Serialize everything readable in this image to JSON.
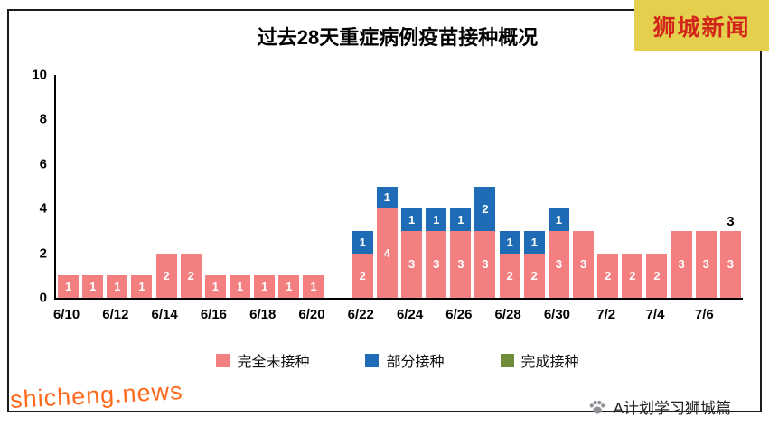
{
  "header": {
    "brand": "狮城新闻",
    "brand_bg": "#e4d04c",
    "brand_color": "#d2251c"
  },
  "chart_data": {
    "type": "bar",
    "stacked": true,
    "title": "过去28天重症病例疫苗接种概况",
    "ylim": [
      0,
      10
    ],
    "yticks": [
      0,
      2,
      4,
      6,
      8,
      10
    ],
    "x_tick_labels": [
      "6/10",
      "6/12",
      "6/14",
      "6/16",
      "6/18",
      "6/20",
      "6/22",
      "6/24",
      "6/26",
      "6/28",
      "6/30",
      "7/2",
      "7/4",
      "7/6"
    ],
    "days": [
      "6/10",
      "6/11",
      "6/12",
      "6/13",
      "6/14",
      "6/15",
      "6/16",
      "6/17",
      "6/18",
      "6/19",
      "6/20",
      "6/21",
      "6/22",
      "6/23",
      "6/24",
      "6/25",
      "6/26",
      "6/27",
      "6/28",
      "6/29",
      "6/30",
      "7/1",
      "7/2",
      "7/3",
      "7/4",
      "7/5",
      "7/6",
      "7/7"
    ],
    "series": [
      {
        "name": "完全未接种",
        "color": "#f37f81",
        "values": [
          1,
          1,
          1,
          1,
          2,
          2,
          1,
          1,
          1,
          1,
          1,
          0,
          2,
          4,
          3,
          3,
          3,
          3,
          2,
          2,
          3,
          3,
          2,
          2,
          2,
          3,
          3,
          3
        ]
      },
      {
        "name": "部分接种",
        "color": "#1e6cb5",
        "values": [
          0,
          0,
          0,
          0,
          0,
          0,
          0,
          0,
          0,
          0,
          0,
          0,
          1,
          1,
          1,
          1,
          1,
          2,
          1,
          1,
          1,
          0,
          0,
          0,
          0,
          0,
          0,
          0
        ]
      },
      {
        "name": "完成接种",
        "color": "#6f8c3a",
        "values": [
          0,
          0,
          0,
          0,
          0,
          0,
          0,
          0,
          0,
          0,
          0,
          0,
          0,
          0,
          0,
          0,
          0,
          0,
          0,
          0,
          0,
          0,
          0,
          0,
          0,
          0,
          0,
          0
        ]
      }
    ],
    "last_bar_annotation": "3",
    "grid": false,
    "legend_position": "bottom"
  },
  "footer": {
    "watermark": "shicheng.news",
    "credit": "A计划学习狮城篇"
  }
}
